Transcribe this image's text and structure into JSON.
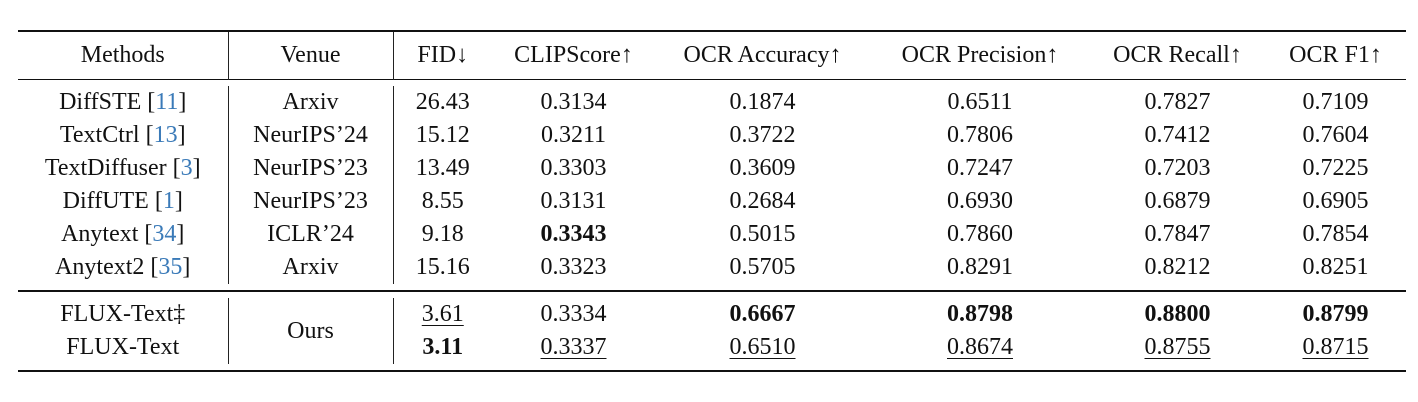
{
  "headers": [
    "Methods",
    "Venue",
    "FID↓",
    "CLIPScore↑",
    "OCR Accuracy↑",
    "OCR Precision↑",
    "OCR Recall↑",
    "OCR F1↑"
  ],
  "baselines": [
    {
      "method": "DiffSTE",
      "ref": "11",
      "venue": "Arxiv",
      "values": [
        "26.43",
        "0.3134",
        "0.1874",
        "0.6511",
        "0.7827",
        "0.7109"
      ],
      "bold": [],
      "underline": []
    },
    {
      "method": "TextCtrl",
      "ref": "13",
      "venue": "NeurIPS’24",
      "values": [
        "15.12",
        "0.3211",
        "0.3722",
        "0.7806",
        "0.7412",
        "0.7604"
      ],
      "bold": [],
      "underline": []
    },
    {
      "method": "TextDiffuser",
      "ref": "3",
      "venue": "NeurIPS’23",
      "values": [
        "13.49",
        "0.3303",
        "0.3609",
        "0.7247",
        "0.7203",
        "0.7225"
      ],
      "bold": [],
      "underline": []
    },
    {
      "method": "DiffUTE",
      "ref": "1",
      "venue": "NeurIPS’23",
      "values": [
        "8.55",
        "0.3131",
        "0.2684",
        "0.6930",
        "0.6879",
        "0.6905"
      ],
      "bold": [],
      "underline": []
    },
    {
      "method": "Anytext",
      "ref": "34",
      "venue": "ICLR’24",
      "values": [
        "9.18",
        "0.3343",
        "0.5015",
        "0.7860",
        "0.7847",
        "0.7854"
      ],
      "bold": [
        1
      ],
      "underline": []
    },
    {
      "method": "Anytext2",
      "ref": "35",
      "venue": "Arxiv",
      "values": [
        "15.16",
        "0.3323",
        "0.5705",
        "0.8291",
        "0.8212",
        "0.8251"
      ],
      "bold": [],
      "underline": []
    }
  ],
  "ours": {
    "venue": "Ours",
    "rows": [
      {
        "method": "FLUX-Text‡",
        "values": [
          "3.61",
          "0.3334",
          "0.6667",
          "0.8798",
          "0.8800",
          "0.8799"
        ],
        "bold": [
          2,
          3,
          4,
          5
        ],
        "underline": [
          0
        ]
      },
      {
        "method": "FLUX-Text",
        "values": [
          "3.11",
          "0.3337",
          "0.6510",
          "0.8674",
          "0.8755",
          "0.8715"
        ],
        "bold": [
          0
        ],
        "underline": [
          1,
          2,
          3,
          4,
          5
        ]
      }
    ]
  }
}
